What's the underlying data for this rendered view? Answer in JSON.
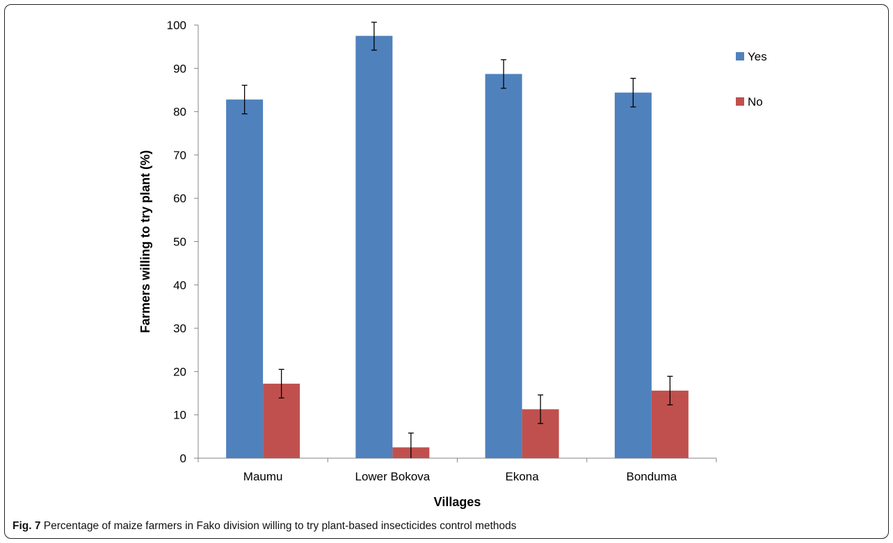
{
  "chart_data": {
    "type": "bar",
    "title": "",
    "xlabel": "Villages",
    "ylabel": "Farmers willing to try plant (%)",
    "ylim": [
      0,
      100
    ],
    "yticks": [
      0,
      10,
      20,
      30,
      40,
      50,
      60,
      70,
      80,
      90,
      100
    ],
    "categories": [
      "Maumu",
      "Lower Bokova",
      "Ekona",
      "Bonduma"
    ],
    "series": [
      {
        "name": "Yes",
        "color": "#4F81BD",
        "values": [
          82.8,
          97.5,
          88.7,
          84.4
        ],
        "error": [
          3.3,
          3.3,
          3.3,
          3.3
        ]
      },
      {
        "name": "No",
        "color": "#C0504D",
        "values": [
          17.2,
          2.5,
          11.3,
          15.6
        ],
        "error": [
          3.3,
          3.3,
          3.3,
          3.3
        ]
      }
    ],
    "grid": false,
    "legend_position": "right"
  },
  "caption": {
    "label": "Fig. 7",
    "text": " Percentage of maize farmers in Fako division willing to try plant-based insecticides control methods"
  }
}
